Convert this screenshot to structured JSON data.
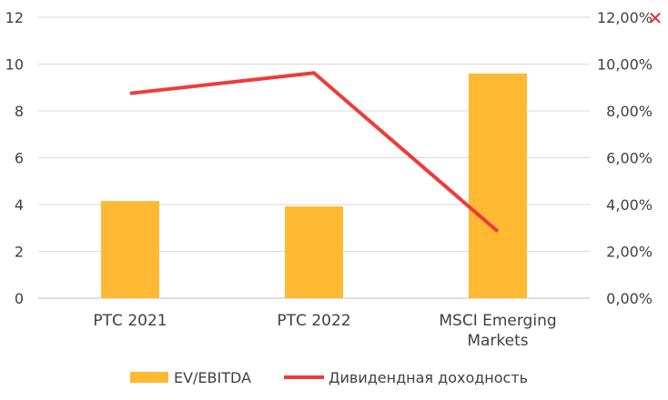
{
  "chart_data": {
    "type": "bar+line",
    "categories": [
      "РТС 2021",
      "РТС 2022",
      "MSCI Emerging Markets"
    ],
    "series": [
      {
        "name": "EV/EBITDA",
        "type": "bar",
        "axis": "left",
        "color": "#FFB933",
        "values": [
          4.15,
          3.92,
          9.6
        ]
      },
      {
        "name": "Дивидендная доходность",
        "type": "line",
        "axis": "right",
        "color": "#F03A3A",
        "values": [
          8.75,
          9.62,
          2.85
        ]
      }
    ],
    "y_left": {
      "min": 0,
      "max": 12,
      "ticks": [
        "0",
        "2",
        "4",
        "6",
        "8",
        "10",
        "12"
      ]
    },
    "y_right": {
      "min": 0,
      "max": 12,
      "ticks": [
        "0,00%",
        "2,00%",
        "4,00%",
        "6,00%",
        "8,00%",
        "10,00%",
        "12,00%"
      ]
    },
    "grid": true,
    "legend_position": "bottom"
  },
  "icons": {
    "close": "close-icon"
  },
  "close_glyph": "✕"
}
